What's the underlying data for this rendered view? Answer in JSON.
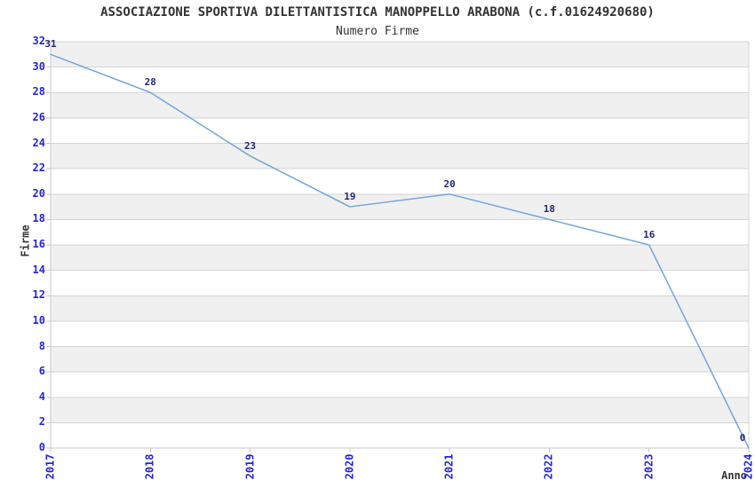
{
  "chart_data": {
    "type": "line",
    "title": "ASSOCIAZIONE SPORTIVA DILETTANTISTICA MANOPPELLO ARABONA (c.f.01624920680)",
    "subtitle": "Numero Firme",
    "xlabel": "Anno",
    "ylabel": "Firme",
    "categories": [
      "2017",
      "2018",
      "2019",
      "2020",
      "2021",
      "2022",
      "2023",
      "2024"
    ],
    "series": [
      {
        "name": "Numero Firme",
        "values": [
          31,
          28,
          23,
          19,
          20,
          18,
          16,
          0
        ]
      }
    ],
    "point_labels": [
      "31",
      "28",
      "23",
      "19",
      "20",
      "18",
      "16",
      "0"
    ],
    "ylim": [
      0,
      32
    ],
    "ytick_step": 2,
    "grid": true,
    "legend_position": "none",
    "colors": {
      "background": "#ffffff",
      "text": "#333333",
      "line": "#74a6db",
      "tick_label": "#2424dd",
      "point_label": "#262678",
      "band": "#f0f0f0",
      "grid_line": "#d4d4d4",
      "axis_line": "#c9c9c9"
    }
  }
}
